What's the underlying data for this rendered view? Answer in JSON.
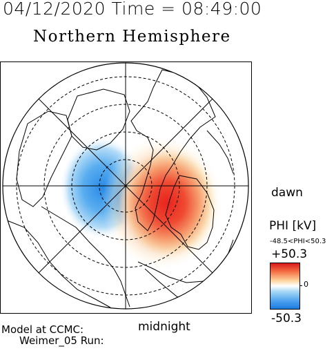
{
  "header": {
    "timestamp": "04/12/2020 Time = 08:49:00",
    "hemisphere": "Northern Hemisphere"
  },
  "map": {
    "orientation": {
      "right_label": "dawn",
      "bottom_label": "midnight"
    },
    "potential_pattern": {
      "negative_cell": "dusk side (blue)",
      "positive_cell": "dawn side (red)"
    }
  },
  "colorbar": {
    "title": "PHI [kV]",
    "range_text": "-48.5<PHI<50.3",
    "max_label": "+50.3",
    "zero_label": "0",
    "min_label": "-50.3",
    "colors": {
      "max": "#d7191c",
      "mid": "#ffffff",
      "min": "#1a7be0"
    }
  },
  "footer": {
    "line1": "Model at CCMC:",
    "line2": "Weimer_05 Run:"
  }
}
